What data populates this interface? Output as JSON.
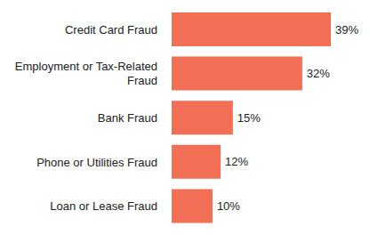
{
  "chart_data": {
    "type": "bar",
    "orientation": "horizontal",
    "categories": [
      "Credit Card Fraud",
      "Employment or Tax-Related Fraud",
      "Bank Fraud",
      "Phone or Utilities Fraud",
      "Loan or Lease Fraud"
    ],
    "values": [
      39,
      32,
      15,
      12,
      10
    ],
    "value_labels": [
      "39%",
      "32%",
      "15%",
      "12%",
      "10%"
    ],
    "color": "#f26f55",
    "data_labels": true,
    "tick_labels": "y",
    "grid": false
  }
}
